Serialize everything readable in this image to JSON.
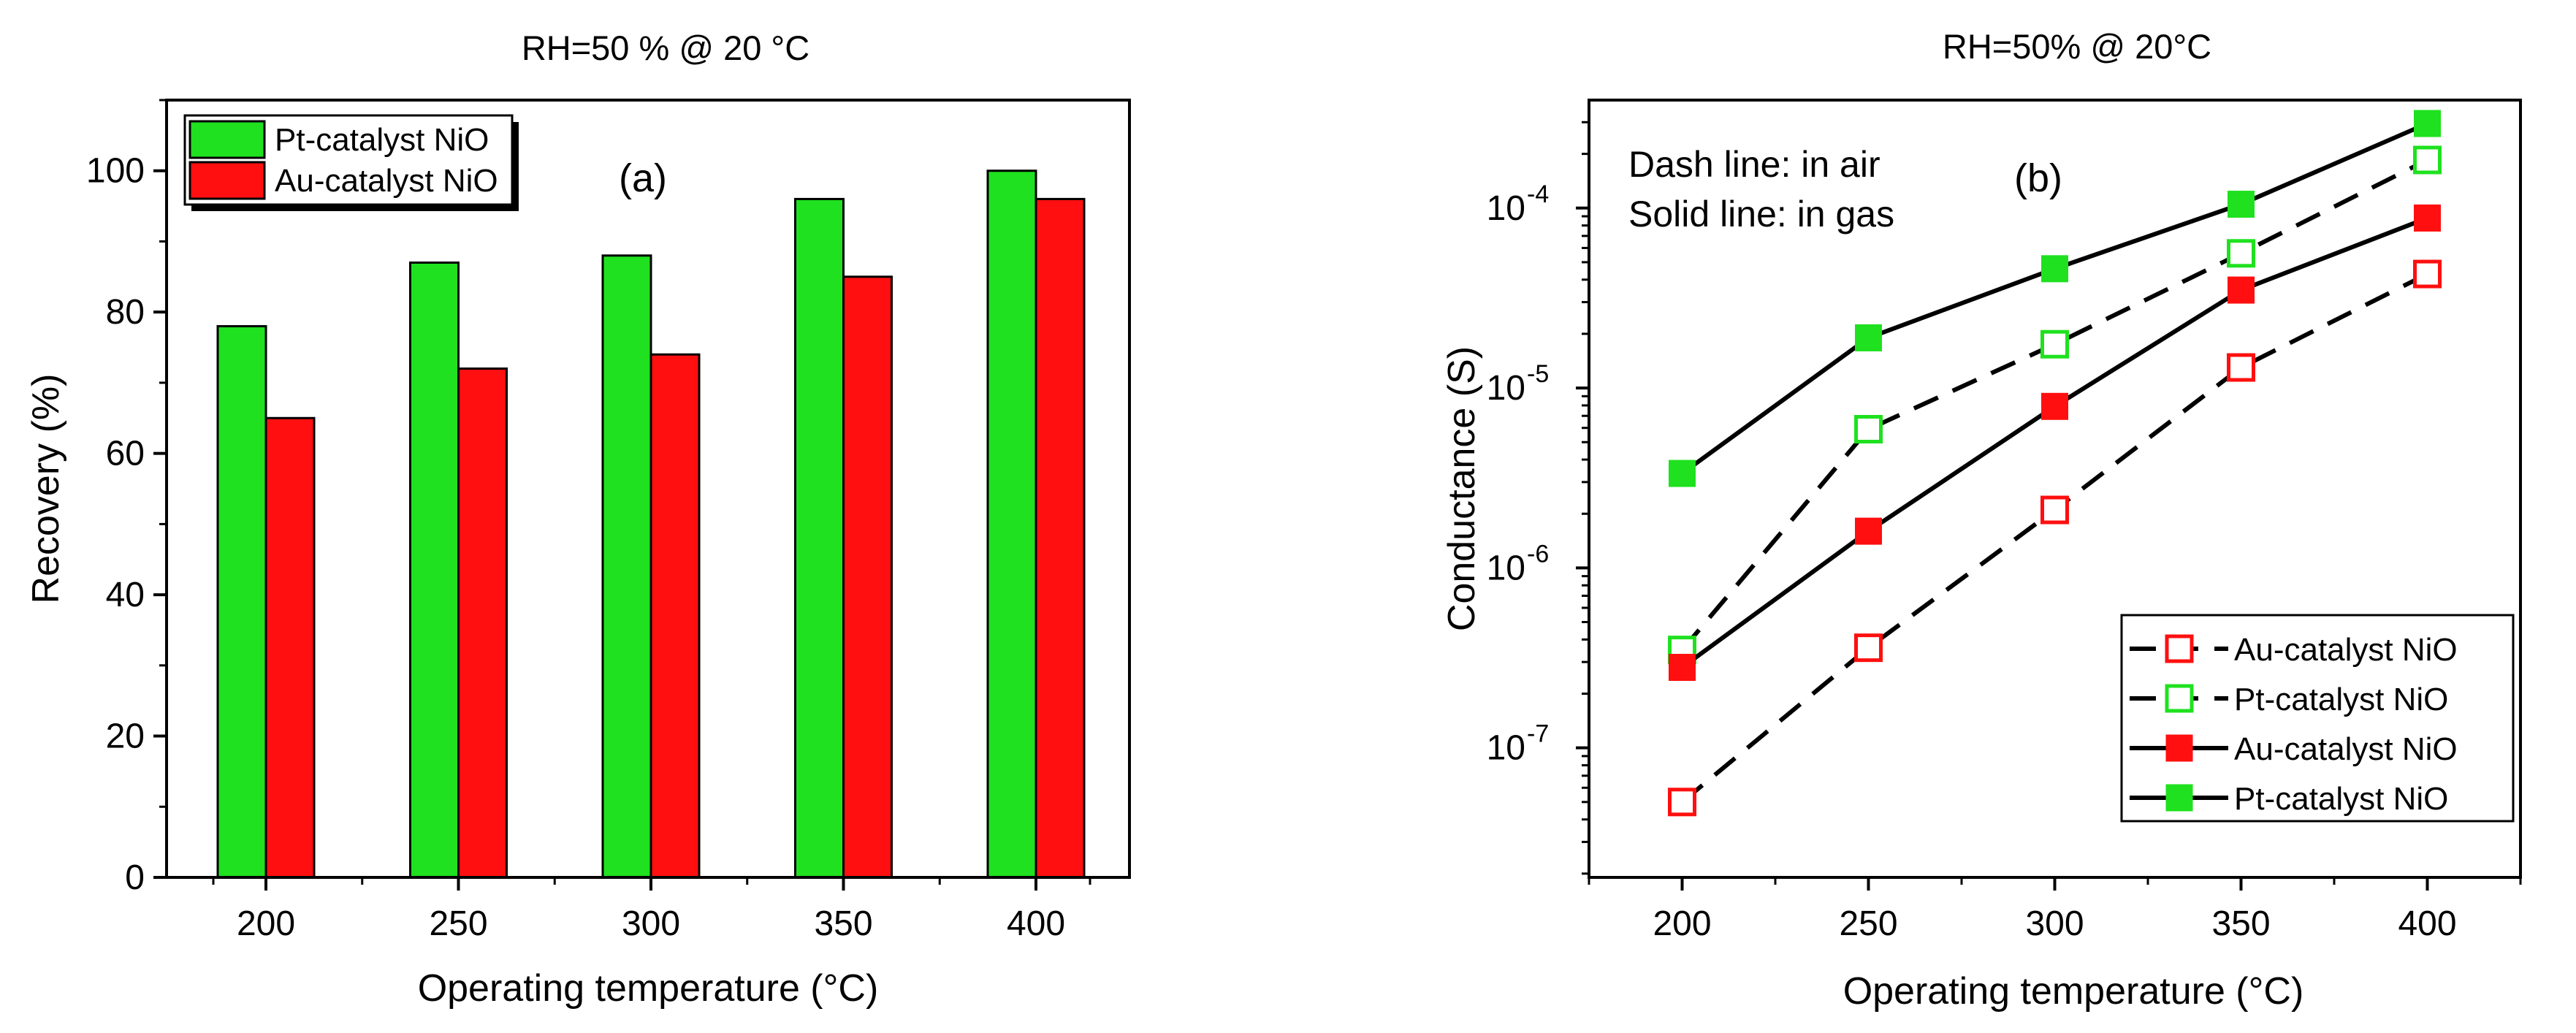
{
  "colors": {
    "pt": "#1fe11f",
    "au": "#ff0f0f",
    "axis": "#000000",
    "background": "#ffffff"
  },
  "chart_data": [
    {
      "type": "bar",
      "title": "RH=50 % @ 20 °C",
      "panel_label": "(a)",
      "xlabel": "Operating temperature (°C)",
      "ylabel": "Recovery (%)",
      "categories": [
        "200",
        "250",
        "300",
        "350",
        "400"
      ],
      "ylim": [
        0,
        110
      ],
      "yticks": [
        "0",
        "20",
        "40",
        "60",
        "80",
        "100"
      ],
      "series": [
        {
          "name": "Pt-catalyst NiO",
          "color_key": "pt",
          "values": [
            78,
            87,
            88,
            96,
            100
          ]
        },
        {
          "name": "Au-catalyst NiO",
          "color_key": "au",
          "values": [
            65,
            72,
            74,
            85,
            96
          ]
        }
      ],
      "legend_position": "top-left"
    },
    {
      "type": "line",
      "yscale": "log",
      "title": "RH=50% @ 20°C",
      "panel_label": "(b)",
      "annotations": [
        "Dash line: in air",
        "Solid line: in gas"
      ],
      "xlabel": "Operating temperature (°C)",
      "ylabel": "Conductance (S)",
      "x": [
        200,
        250,
        300,
        350,
        400
      ],
      "xlim": [
        175,
        425
      ],
      "xticks": [
        "200",
        "250",
        "300",
        "350",
        "400"
      ],
      "ylim_log10": [
        -7.72,
        -3.4
      ],
      "yticks": [
        {
          "base": "10",
          "exp": "-7",
          "log": -7
        },
        {
          "base": "10",
          "exp": "-6",
          "log": -6
        },
        {
          "base": "10",
          "exp": "-5",
          "log": -5
        },
        {
          "base": "10",
          "exp": "-4",
          "log": -4
        }
      ],
      "series": [
        {
          "name": "Au-catalyst NiO",
          "condition": "in air",
          "line": "dashed",
          "marker": "open-square",
          "color_key": "au",
          "values": [
            5e-08,
            3.6e-07,
            2.1e-06,
            1.3e-05,
            4.3e-05
          ]
        },
        {
          "name": "Pt-catalyst NiO",
          "condition": "in air",
          "line": "dashed",
          "marker": "open-square",
          "color_key": "pt",
          "values": [
            3.5e-07,
            5.9e-06,
            1.75e-05,
            5.6e-05,
            0.000185
          ]
        },
        {
          "name": "Au-catalyst NiO",
          "condition": "in gas",
          "line": "solid",
          "marker": "filled-square",
          "color_key": "au",
          "values": [
            2.8e-07,
            1.6e-06,
            7.9e-06,
            3.5e-05,
            8.8e-05
          ]
        },
        {
          "name": "Pt-catalyst NiO",
          "condition": "in gas",
          "line": "solid",
          "marker": "filled-square",
          "color_key": "pt",
          "values": [
            3.35e-06,
            1.9e-05,
            4.6e-05,
            0.000105,
            0.000295
          ]
        }
      ],
      "legend_position": "bottom-right"
    }
  ]
}
